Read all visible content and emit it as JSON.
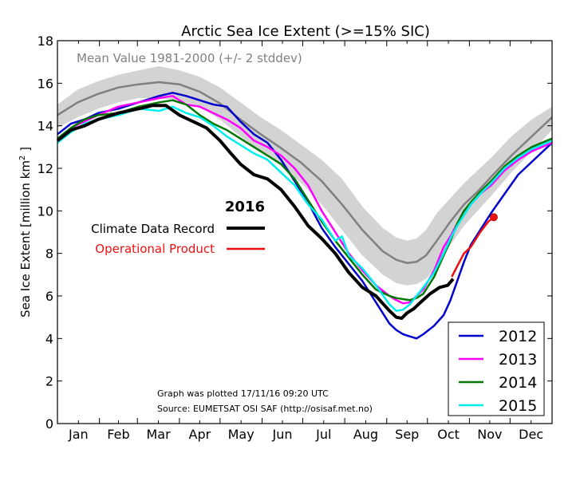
{
  "chart_data": {
    "type": "line",
    "title": "Arctic Sea Ice Extent (>=15% SIC)",
    "xlabel": "",
    "ylabel": "Sea Ice Extent [million km²]",
    "ylabel_parts": {
      "before": "Sea Ice Extent [million km",
      "sup": "2",
      "after": " ]"
    },
    "xlim": [
      0,
      365
    ],
    "ylim": [
      0,
      18
    ],
    "y_ticks": [
      0,
      2,
      4,
      6,
      8,
      10,
      12,
      14,
      16,
      18
    ],
    "x_tick_labels": [
      {
        "label": "Jan",
        "day": 15.5
      },
      {
        "label": "Feb",
        "day": 45
      },
      {
        "label": "Mar",
        "day": 74.5
      },
      {
        "label": "Apr",
        "day": 105
      },
      {
        "label": "May",
        "day": 135.5
      },
      {
        "label": "Jun",
        "day": 166
      },
      {
        "label": "Jul",
        "day": 196.5
      },
      {
        "label": "Aug",
        "day": 227.5
      },
      {
        "label": "Sep",
        "day": 258
      },
      {
        "label": "Oct",
        "day": 288.5
      },
      {
        "label": "Nov",
        "day": 319
      },
      {
        "label": "Dec",
        "day": 349.5
      }
    ],
    "month_boundaries": [
      0,
      31,
      59,
      90,
      120,
      151,
      181,
      212,
      243,
      273,
      304,
      334,
      365
    ],
    "grid": false,
    "mean_annotation": "Mean Value 1981-2000 (+/- 2 stddev)",
    "mean": {
      "name": "Mean 1981-2000",
      "color": "#808080",
      "x": [
        0,
        15,
        30,
        45,
        60,
        75,
        90,
        105,
        120,
        135,
        150,
        165,
        180,
        195,
        210,
        225,
        240,
        250,
        258,
        265,
        272,
        280,
        290,
        300,
        310,
        320,
        335,
        350,
        365
      ],
      "y": [
        14.5,
        15.1,
        15.5,
        15.8,
        15.95,
        16.05,
        15.95,
        15.6,
        15.05,
        14.3,
        13.6,
        12.95,
        12.25,
        11.4,
        10.3,
        9.1,
        8.1,
        7.7,
        7.55,
        7.6,
        7.9,
        8.6,
        9.5,
        10.3,
        10.9,
        11.6,
        12.6,
        13.5,
        14.4
      ]
    },
    "stddev_band": {
      "name": "+/- 2 stddev",
      "color": "#d3d3d3",
      "x": [
        0,
        15,
        30,
        45,
        60,
        75,
        90,
        105,
        120,
        135,
        150,
        165,
        180,
        195,
        210,
        225,
        240,
        250,
        258,
        265,
        272,
        280,
        290,
        300,
        310,
        320,
        335,
        350,
        365
      ],
      "upper": [
        15.0,
        15.7,
        16.1,
        16.4,
        16.6,
        16.8,
        16.6,
        16.3,
        15.8,
        15.1,
        14.4,
        13.8,
        13.1,
        12.4,
        11.5,
        10.2,
        9.2,
        8.75,
        8.6,
        8.7,
        9.1,
        9.9,
        10.6,
        11.3,
        11.9,
        12.5,
        13.5,
        14.3,
        14.9
      ],
      "lower": [
        13.9,
        14.4,
        14.8,
        15.1,
        15.3,
        15.3,
        15.2,
        14.9,
        14.3,
        13.5,
        12.8,
        12.1,
        11.3,
        10.3,
        9.1,
        7.9,
        7.0,
        6.6,
        6.5,
        6.55,
        6.8,
        7.4,
        8.4,
        9.3,
        10.0,
        10.7,
        11.8,
        12.8,
        13.8
      ]
    },
    "series": [
      {
        "name": "2012",
        "color": "#0000cc",
        "x": [
          0,
          10,
          20,
          30,
          45,
          60,
          75,
          85,
          95,
          105,
          115,
          125,
          135,
          145,
          155,
          165,
          175,
          185,
          195,
          205,
          215,
          225,
          235,
          245,
          250,
          255,
          260,
          265,
          270,
          278,
          285,
          290,
          295,
          300,
          305,
          312,
          320,
          330,
          340,
          350,
          365
        ],
        "y": [
          13.6,
          14.1,
          14.3,
          14.6,
          14.8,
          15.1,
          15.4,
          15.55,
          15.4,
          15.2,
          15.0,
          14.9,
          14.2,
          13.6,
          13.2,
          12.4,
          11.4,
          10.4,
          9.2,
          8.3,
          7.5,
          6.7,
          5.7,
          4.7,
          4.4,
          4.2,
          4.1,
          4.0,
          4.2,
          4.6,
          5.1,
          5.8,
          6.7,
          7.6,
          8.4,
          9.1,
          9.9,
          10.8,
          11.7,
          12.3,
          13.2
        ]
      },
      {
        "name": "2013",
        "color": "#ff00ff",
        "x": [
          0,
          10,
          20,
          30,
          45,
          60,
          75,
          85,
          95,
          105,
          115,
          125,
          135,
          145,
          155,
          165,
          175,
          185,
          195,
          205,
          215,
          225,
          235,
          245,
          250,
          255,
          260,
          265,
          270,
          278,
          285,
          290,
          295,
          300,
          305,
          312,
          320,
          330,
          340,
          350,
          365
        ],
        "y": [
          13.3,
          13.9,
          14.2,
          14.5,
          14.9,
          15.1,
          15.3,
          15.4,
          15.0,
          14.9,
          14.6,
          14.3,
          13.9,
          13.3,
          13.0,
          12.6,
          12.0,
          11.2,
          10.0,
          9.0,
          8.0,
          7.2,
          6.5,
          6.0,
          5.8,
          5.65,
          5.7,
          6.0,
          6.3,
          7.2,
          8.3,
          8.8,
          9.4,
          10.0,
          10.3,
          10.8,
          11.2,
          11.9,
          12.4,
          12.8,
          13.2
        ]
      },
      {
        "name": "2014",
        "color": "#007700",
        "x": [
          0,
          10,
          20,
          30,
          45,
          60,
          75,
          85,
          95,
          105,
          115,
          125,
          135,
          145,
          155,
          165,
          175,
          185,
          195,
          205,
          215,
          225,
          235,
          245,
          250,
          255,
          260,
          265,
          270,
          278,
          285,
          290,
          295,
          300,
          305,
          312,
          320,
          330,
          340,
          350,
          365
        ],
        "y": [
          13.4,
          13.9,
          14.3,
          14.5,
          14.6,
          14.9,
          15.1,
          15.2,
          15.0,
          14.5,
          14.1,
          13.8,
          13.4,
          13.0,
          12.6,
          12.2,
          11.5,
          10.5,
          9.5,
          8.6,
          7.8,
          7.0,
          6.3,
          6.0,
          5.9,
          5.85,
          5.8,
          5.9,
          6.1,
          6.9,
          7.9,
          8.6,
          9.4,
          10.0,
          10.4,
          10.9,
          11.4,
          12.1,
          12.6,
          13.0,
          13.4
        ]
      },
      {
        "name": "2015",
        "color": "#00eeee",
        "x": [
          0,
          10,
          20,
          30,
          45,
          60,
          75,
          85,
          95,
          105,
          115,
          125,
          135,
          145,
          155,
          165,
          175,
          185,
          195,
          205,
          210,
          215,
          225,
          235,
          245,
          250,
          255,
          260,
          265,
          270,
          278,
          285,
          290,
          295,
          300,
          305,
          312,
          320,
          330,
          340,
          350,
          365
        ],
        "y": [
          13.2,
          13.7,
          14.1,
          14.3,
          14.5,
          14.8,
          14.7,
          14.9,
          14.6,
          14.4,
          14.0,
          13.5,
          13.1,
          12.7,
          12.4,
          11.8,
          11.2,
          10.3,
          9.6,
          8.6,
          8.8,
          7.9,
          7.3,
          6.5,
          5.6,
          5.3,
          5.35,
          5.6,
          6.0,
          6.4,
          7.1,
          8.0,
          8.7,
          9.3,
          9.8,
          10.3,
          10.8,
          11.3,
          12.0,
          12.5,
          12.9,
          13.3
        ]
      }
    ],
    "year_2016": {
      "title": "2016",
      "climate_data_record": {
        "name": "Climate Data Record",
        "color": "#000000",
        "x": [
          0,
          10,
          20,
          30,
          45,
          60,
          70,
          80,
          90,
          100,
          110,
          120,
          128,
          135,
          145,
          155,
          165,
          175,
          185,
          195,
          205,
          215,
          225,
          235,
          245,
          250,
          254,
          258,
          263,
          268,
          275,
          282,
          288,
          292
        ],
        "y": [
          13.3,
          13.8,
          14.0,
          14.3,
          14.6,
          14.8,
          14.95,
          14.95,
          14.5,
          14.2,
          13.9,
          13.3,
          12.7,
          12.2,
          11.7,
          11.5,
          11.0,
          10.2,
          9.3,
          8.7,
          8.0,
          7.1,
          6.4,
          6.0,
          5.3,
          5.0,
          4.95,
          5.2,
          5.4,
          5.7,
          6.1,
          6.4,
          6.5,
          6.8
        ]
      },
      "operational_product": {
        "name": "Operational Product",
        "color": "#ee1111",
        "x": [
          291,
          295,
          300,
          305,
          312,
          318,
          322
        ],
        "y": [
          6.9,
          7.4,
          8.0,
          8.3,
          9.0,
          9.5,
          9.7
        ],
        "end_marker": {
          "day": 322,
          "value": 9.7
        }
      }
    },
    "legend": {
      "placement": "bottom-right",
      "entries": [
        {
          "label": "2012",
          "color": "#0000cc"
        },
        {
          "label": "2013",
          "color": "#ff00ff"
        },
        {
          "label": "2014",
          "color": "#007700"
        },
        {
          "label": "2015",
          "color": "#00eeee"
        }
      ]
    },
    "legend_2016": {
      "placement": "center-left",
      "title": "2016",
      "entries": [
        {
          "label": "Climate Data Record",
          "color": "#000000",
          "text_color": "#000000"
        },
        {
          "label": "Operational Product",
          "color": "#ee1111",
          "text_color": "#ee1111"
        }
      ]
    },
    "footnotes": [
      "Graph was plotted 17/11/16 09:20 UTC",
      "Source: EUMETSAT OSI SAF (http://osisaf.met.no)"
    ]
  }
}
